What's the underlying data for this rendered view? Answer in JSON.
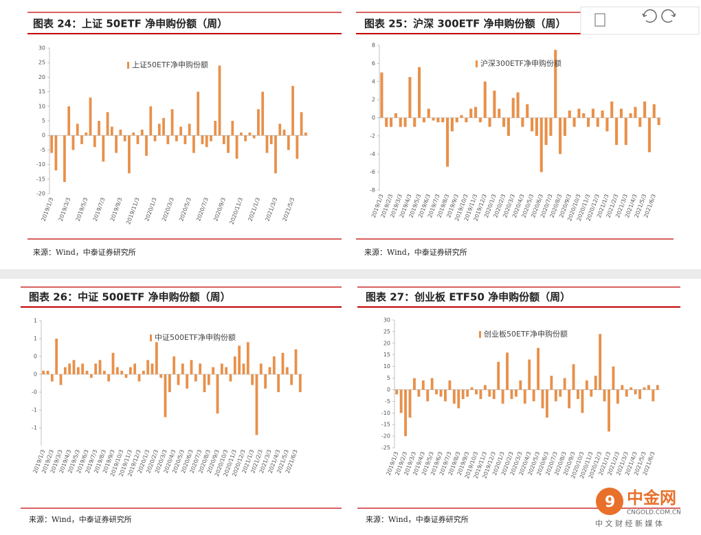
{
  "chart_data": [
    {
      "type": "bar",
      "title": "图表 24：上证 50ETF 净申购份额（周）",
      "source": "来源：Wind，中泰证券研究所",
      "categories": [
        "2019/1/3",
        null,
        null,
        null,
        "2019/3/3",
        null,
        null,
        null,
        "2019/5/3",
        null,
        null,
        null,
        "2019/7/3",
        null,
        null,
        null,
        "2019/9/3",
        null,
        null,
        null,
        "2019/11/3",
        null,
        null,
        null,
        "2020/1/3",
        null,
        null,
        null,
        "2020/3/3",
        null,
        null,
        null,
        "2020/5/3",
        null,
        null,
        null,
        "2020/7/3",
        null,
        null,
        null,
        "2020/9/3",
        null,
        null,
        null,
        "2020/11/3",
        null,
        null,
        null,
        "2021/1/3",
        null,
        null,
        null,
        "2021/3/3",
        null,
        null,
        null,
        "2021/5/3",
        null,
        null,
        null
      ],
      "series": [
        {
          "name": "上证50ETF净申购份额",
          "color": "#e8904a",
          "values": [
            -6,
            -12,
            0,
            -16,
            10,
            -5,
            4,
            -3,
            1,
            13,
            -4,
            5,
            -9,
            8,
            3,
            -6,
            2,
            -2,
            -13,
            1,
            -3,
            2,
            -7,
            10,
            -2,
            4,
            6,
            -3,
            9,
            -2,
            3,
            -3,
            4,
            -6,
            15,
            -3,
            -4,
            -2,
            5,
            24,
            -3,
            -6,
            5,
            -8,
            1,
            -2,
            1,
            -1,
            9,
            15,
            -6,
            -3,
            -13,
            4,
            2,
            -5,
            17,
            -8,
            8,
            1
          ]
        }
      ],
      "ylim": [
        -20,
        30
      ],
      "yticks": [
        30,
        25,
        20,
        15,
        10,
        5,
        0,
        -5,
        -10,
        -15,
        -20
      ]
    },
    {
      "type": "bar",
      "title": "图表 25：沪深 300ETF 净申购份额（周）",
      "source": "来源：Wind，中泰证券研究所",
      "categories": [
        "2019/1/3",
        null,
        "2019/2/3",
        null,
        "2019/3/3",
        null,
        "2019/4/3",
        null,
        "2019/5/3",
        null,
        "2019/6/3",
        null,
        "2019/7/3",
        null,
        "2019/8/3",
        null,
        "2019/9/3",
        null,
        "2019/10/3",
        null,
        "2019/11/3",
        null,
        "2019/12/3",
        null,
        "2020/1/3",
        null,
        "2020/2/3",
        null,
        "2020/3/3",
        null,
        "2020/4/3",
        null,
        "2020/5/3",
        null,
        "2020/6/3",
        null,
        "2020/7/3",
        null,
        "2020/8/3",
        null,
        "2020/9/3",
        null,
        "2020/10/3",
        null,
        "2020/11/3",
        null,
        "2020/12/3",
        null,
        "2021/1/3",
        null,
        "2021/2/3",
        null,
        "2021/3/3",
        null,
        "2021/4/3",
        null,
        "2021/5/3",
        null,
        "2021/6/3",
        null
      ],
      "series": [
        {
          "name": "沪深300ETF净申购份额",
          "color": "#e8904a",
          "values": [
            5,
            -1,
            -1,
            0.5,
            -1,
            -1,
            4.5,
            -1,
            5.6,
            -0.5,
            1,
            -0.3,
            -0.5,
            -0.5,
            -5.4,
            -1.5,
            -0.5,
            0.3,
            -0.5,
            1,
            1.2,
            -0.5,
            4,
            -1,
            3,
            1,
            -1,
            -2,
            2.2,
            2.8,
            -1,
            1.5,
            -1.5,
            -2,
            -6,
            -3,
            -2,
            7.5,
            -4,
            -2,
            0.8,
            -1,
            1,
            0.5,
            -1,
            1,
            -1,
            0.8,
            -1.5,
            1.8,
            -3,
            1,
            -3,
            0.5,
            1.2,
            -1,
            1.8,
            -3.8,
            1.5,
            -0.8
          ]
        }
      ],
      "ylim": [
        -8,
        8
      ],
      "yticks": [
        8,
        6,
        4,
        2,
        0,
        -2,
        -4,
        -6,
        -8
      ]
    },
    {
      "type": "bar",
      "title": "图表 26：中证 500ETF 净申购份额（周）",
      "source": "来源：Wind，中泰证券研究所",
      "categories": [
        "2019/1/3",
        null,
        "2019/2/3",
        null,
        "2019/3/3",
        null,
        "2019/4/3",
        null,
        "2019/5/3",
        null,
        "2019/6/3",
        null,
        "2019/7/3",
        null,
        "2019/8/3",
        null,
        "2019/9/3",
        null,
        "2019/10/3",
        null,
        "2019/11/3",
        null,
        "2019/12/3",
        null,
        "2020/1/3",
        null,
        "2020/2/3",
        null,
        "2020/3/3",
        null,
        "2020/4/3",
        null,
        "2020/5/3",
        null,
        "2020/6/3",
        null,
        "2020/7/3",
        null,
        "2020/8/3",
        null,
        "2020/9/3",
        null,
        "2020/10/3",
        null,
        "2020/11/3",
        null,
        "2020/12/3",
        null,
        "2021/1/3",
        null,
        "2021/2/3",
        null,
        "2021/3/3",
        null,
        "2021/4/3",
        null,
        "2021/5/3",
        null,
        "2021/6/3",
        null
      ],
      "series": [
        {
          "name": "中证500ETF净申购份额",
          "color": "#e8904a",
          "values": [
            0.1,
            0.1,
            -0.2,
            1.0,
            -0.3,
            0.2,
            0.3,
            0.4,
            0.2,
            0.3,
            0.1,
            -0.1,
            0.3,
            0.4,
            0.1,
            -0.2,
            0.6,
            0.2,
            0.1,
            -0.1,
            0.2,
            0.3,
            -0.2,
            0.1,
            0.4,
            0.3,
            0.9,
            -0.1,
            -1.2,
            -0.5,
            0.5,
            -0.3,
            0.3,
            -0.4,
            0.4,
            -0.2,
            0.3,
            -0.5,
            -0.3,
            0.2,
            -1.1,
            0.3,
            0.2,
            -0.2,
            0.5,
            0.8,
            0.3,
            0.9,
            -0.3,
            -1.7,
            0.3,
            -0.4,
            0.2,
            0.5,
            -0.5,
            0.6,
            0.2,
            -0.3,
            0.7,
            -0.5
          ]
        }
      ],
      "ylim": [
        -2,
        1.5
      ],
      "yticks": [
        {
          "value": 1.5,
          "label": "1"
        },
        1,
        {
          "value": 0.5,
          "label": "0"
        },
        0,
        {
          "value": -0.5,
          "label": "-0"
        },
        -1,
        {
          "value": -1.5,
          "label": "-1"
        }
      ]
    },
    {
      "type": "bar",
      "title": "图表 27：创业板 ETF50 净申购份额（周）",
      "source": "来源：Wind，中泰证券研究所",
      "categories": [
        "2019/1/3",
        null,
        "2019/2/3",
        null,
        "2019/3/3",
        null,
        "2019/4/3",
        null,
        "2019/5/3",
        null,
        "2019/6/3",
        null,
        "2019/7/3",
        null,
        "2019/8/3",
        null,
        "2019/9/3",
        null,
        "2019/10/3",
        null,
        "2019/11/3",
        null,
        "2019/12/3",
        null,
        "2020/1/3",
        null,
        "2020/2/3",
        null,
        "2020/3/3",
        null,
        "2020/4/3",
        null,
        "2020/5/3",
        null,
        "2020/6/3",
        null,
        "2020/7/3",
        null,
        "2020/8/3",
        null,
        "2020/9/3",
        null,
        "2020/10/3",
        null,
        "2020/11/3",
        null,
        "2020/12/3",
        null,
        "2021/1/3",
        null,
        "2021/2/3",
        null,
        "2021/3/3",
        null,
        "2021/4/3",
        null,
        "2021/5/3",
        null,
        "2021/6/3",
        null
      ],
      "series": [
        {
          "name": "创业板50ETF净申购份额",
          "color": "#e8904a",
          "values": [
            -2,
            -10,
            -20,
            -12,
            5,
            -3,
            4,
            -5,
            5,
            -2,
            -3,
            -5,
            4,
            -6,
            -8,
            -4,
            -3,
            1,
            -2,
            -4,
            2,
            -3,
            -4,
            12,
            -6,
            16,
            -4,
            -3,
            4,
            -6,
            13,
            -5,
            18,
            -8,
            -12,
            6,
            -5,
            -3,
            5,
            -8,
            11,
            -4,
            -10,
            4,
            -3,
            6,
            24,
            -5,
            -18,
            10,
            -6,
            2,
            -3,
            1,
            -2,
            -4,
            1,
            2,
            -5,
            2
          ]
        }
      ],
      "ylim": [
        -25,
        30
      ],
      "yticks": [
        30,
        25,
        20,
        15,
        10,
        5,
        0,
        -5,
        -10,
        -15,
        -20,
        -25
      ]
    }
  ],
  "watermark": {
    "name": "中金网",
    "site": "CNGOLD.COM.CN",
    "slogan": "中 文 财 经 新 媒 体"
  }
}
